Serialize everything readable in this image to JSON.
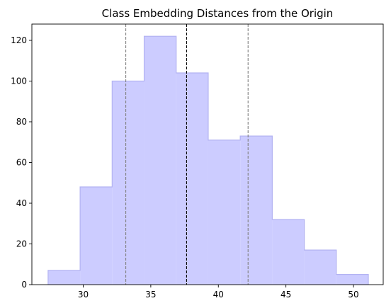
{
  "chart_data": {
    "type": "bar",
    "subtype": "step-filled histogram",
    "title": "Class Embedding Distances from the Origin",
    "xlabel": "",
    "ylabel": "",
    "xlim": [
      26.2,
      52.2
    ],
    "ylim": [
      0,
      128
    ],
    "xticks": [
      30,
      35,
      40,
      45,
      50
    ],
    "yticks": [
      0,
      20,
      40,
      60,
      80,
      100,
      120
    ],
    "bins": [
      {
        "x0": 27.4,
        "x1": 29.77,
        "count": 7
      },
      {
        "x0": 29.77,
        "x1": 32.14,
        "count": 48
      },
      {
        "x0": 32.14,
        "x1": 34.51,
        "count": 100
      },
      {
        "x0": 34.51,
        "x1": 36.88,
        "count": 122
      },
      {
        "x0": 36.88,
        "x1": 39.25,
        "count": 104
      },
      {
        "x0": 39.25,
        "x1": 41.62,
        "count": 71
      },
      {
        "x0": 41.62,
        "x1": 43.99,
        "count": 73
      },
      {
        "x0": 43.99,
        "x1": 46.36,
        "count": 32
      },
      {
        "x0": 46.36,
        "x1": 48.73,
        "count": 17
      },
      {
        "x0": 48.73,
        "x1": 51.1,
        "count": 5
      }
    ],
    "vlines": [
      {
        "x": 33.15,
        "color": "#808080",
        "style": "dashed"
      },
      {
        "x": 37.65,
        "color": "#000000",
        "style": "dashed"
      },
      {
        "x": 42.2,
        "color": "#808080",
        "style": "dashed"
      }
    ],
    "fill_color": "#ccccff",
    "edge_color": "#b3b3f2",
    "grid": false,
    "legend": "none"
  }
}
